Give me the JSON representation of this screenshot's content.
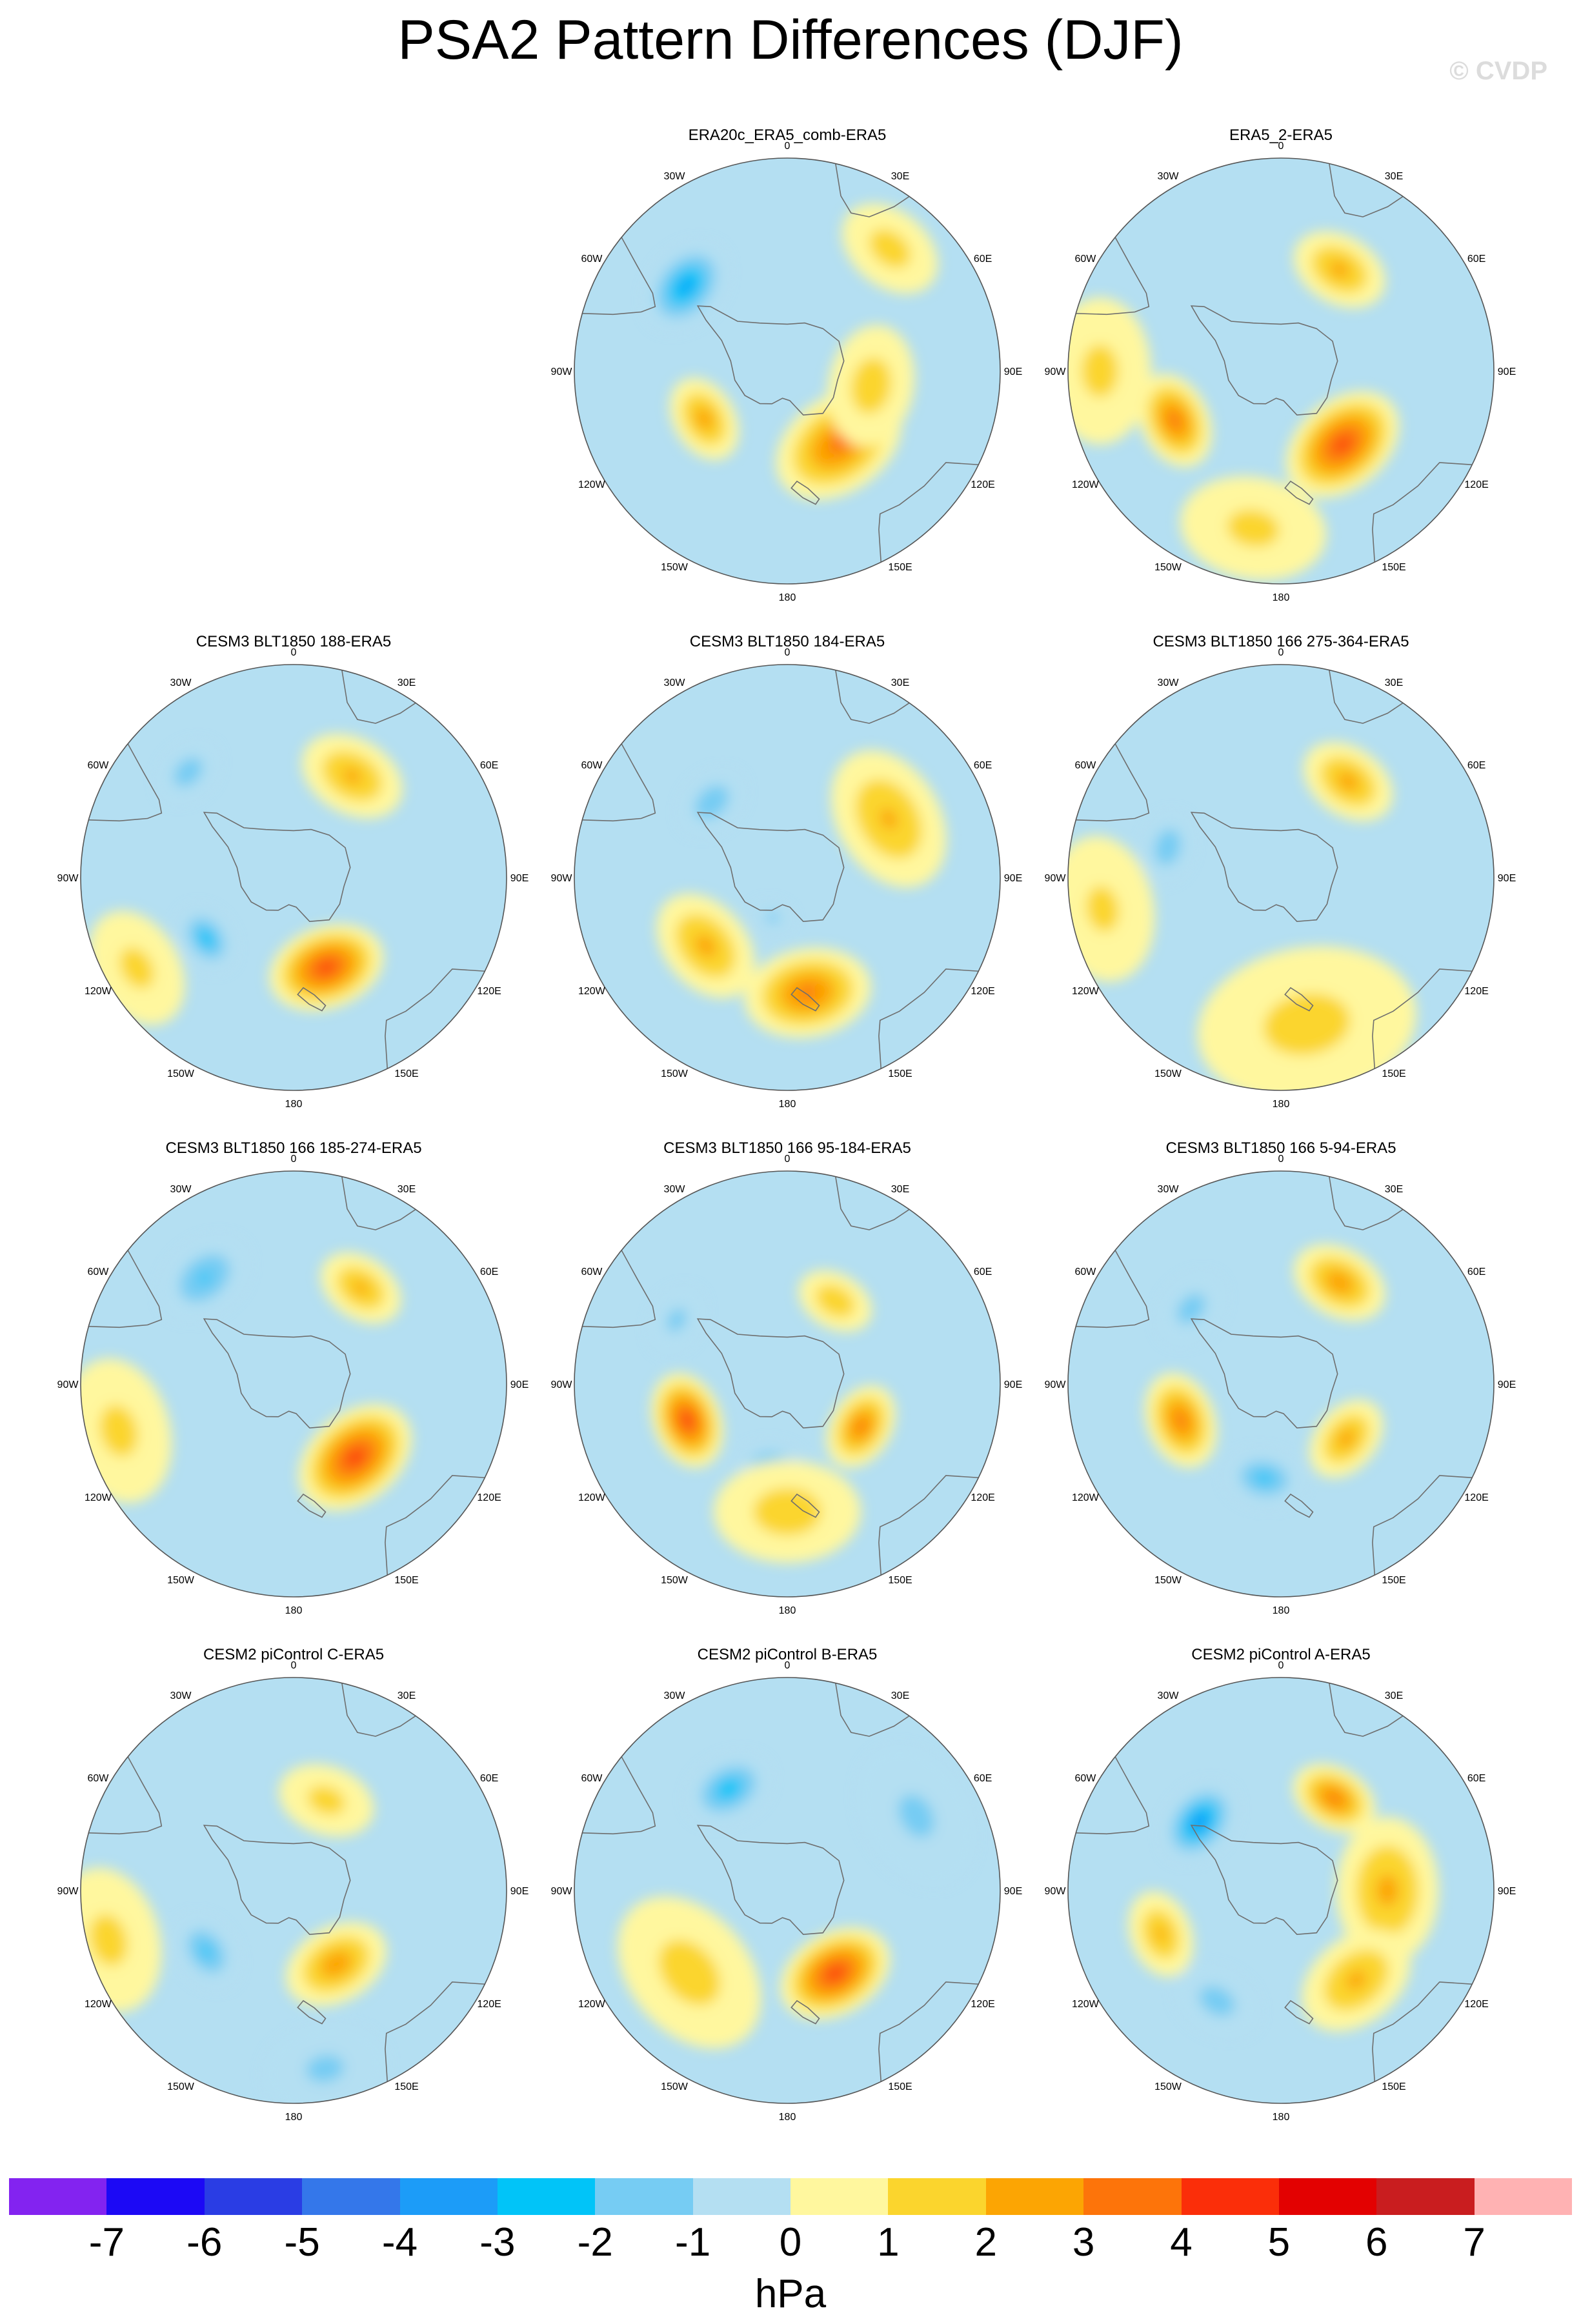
{
  "header": {
    "title": "PSA2 Pattern Differences (DJF)",
    "watermark": "© CVDP"
  },
  "lon_labels": [
    "0",
    "30E",
    "60E",
    "90E",
    "120E",
    "150E",
    "180",
    "150W",
    "120W",
    "90W",
    "60W",
    "30W"
  ],
  "colors": {
    "ocean_neutral": "#b4dff2",
    "coast_line": "#6e6e6e"
  },
  "chart_data": {
    "type": "polar-contour-maps",
    "projection": "polar stereographic (south pole)",
    "variable": "sea level pressure pattern difference",
    "season": "DJF",
    "units": "hPa",
    "levels": [
      -7,
      -6,
      -5,
      -4,
      -3,
      -2,
      -1,
      0,
      1,
      2,
      3,
      4,
      5,
      6,
      7
    ],
    "colorbar": {
      "tick_labels": [
        "-7",
        "-6",
        "-5",
        "-4",
        "-3",
        "-2",
        "-1",
        "0",
        "1",
        "2",
        "3",
        "4",
        "5",
        "6",
        "7"
      ],
      "unit_label": "hPa",
      "colors": [
        "#8323f0",
        "#1c09f5",
        "#2a3de4",
        "#3477ea",
        "#1c9cf8",
        "#01c4f8",
        "#76ccf3",
        "#b4dff2",
        "#fff79e",
        "#fbd52d",
        "#fca503",
        "#fd740a",
        "#fb2e09",
        "#e30101",
        "#c91d1f",
        "#ffb2b3"
      ]
    },
    "panels": [
      {
        "title": "ERA20c_ERA5_comb-ERA5",
        "blobs": [
          {
            "lon": 310,
            "colat": 0.62,
            "value": -3.2,
            "spread": 0.2
          },
          {
            "lon": 145,
            "colat": 0.42,
            "value": 3.3,
            "spread": 0.28
          },
          {
            "lon": 240,
            "colat": 0.45,
            "value": 2.4,
            "spread": 0.18
          },
          {
            "lon": 40,
            "colat": 0.75,
            "value": 1.4,
            "spread": 0.22
          },
          {
            "lon": 100,
            "colat": 0.4,
            "value": 1.5,
            "spread": 0.25
          }
        ]
      },
      {
        "title": "ERA5_2-ERA5",
        "blobs": [
          {
            "lon": 140,
            "colat": 0.45,
            "value": 4.2,
            "spread": 0.26
          },
          {
            "lon": 245,
            "colat": 0.55,
            "value": 3.3,
            "spread": 0.2
          },
          {
            "lon": 30,
            "colat": 0.55,
            "value": 2.2,
            "spread": 0.2
          },
          {
            "lon": 190,
            "colat": 0.75,
            "value": 1.2,
            "spread": 0.3
          },
          {
            "lon": 270,
            "colat": 0.85,
            "value": 1.2,
            "spread": 0.3
          }
        ]
      },
      {
        "title": "CESM3 BLT1850 188-ERA5",
        "blobs": [
          {
            "lon": 160,
            "colat": 0.45,
            "value": 4.2,
            "spread": 0.24
          },
          {
            "lon": 235,
            "colat": 0.5,
            "value": -2.6,
            "spread": 0.14
          },
          {
            "lon": 315,
            "colat": 0.7,
            "value": -1.6,
            "spread": 0.14
          },
          {
            "lon": 30,
            "colat": 0.55,
            "value": 2.1,
            "spread": 0.22
          },
          {
            "lon": 240,
            "colat": 0.85,
            "value": 1.2,
            "spread": 0.25
          }
        ]
      },
      {
        "title": "CESM3 BLT1850 184-ERA5",
        "blobs": [
          {
            "lon": 170,
            "colat": 0.55,
            "value": 3.2,
            "spread": 0.26
          },
          {
            "lon": 230,
            "colat": 0.5,
            "value": 2.2,
            "spread": 0.24
          },
          {
            "lon": 60,
            "colat": 0.55,
            "value": 2.0,
            "spread": 0.3
          },
          {
            "lon": 315,
            "colat": 0.5,
            "value": -1.8,
            "spread": 0.15
          },
          {
            "lon": 200,
            "colat": 0.2,
            "value": -1.2,
            "spread": 0.08
          }
        ]
      },
      {
        "title": "CESM3 BLT1850 166 275-364-ERA5",
        "blobs": [
          {
            "lon": 35,
            "colat": 0.55,
            "value": 2.3,
            "spread": 0.2
          },
          {
            "lon": 285,
            "colat": 0.55,
            "value": -1.8,
            "spread": 0.14
          },
          {
            "lon": 170,
            "colat": 0.7,
            "value": 1.3,
            "spread": 0.45
          },
          {
            "lon": 260,
            "colat": 0.85,
            "value": 1.1,
            "spread": 0.3
          }
        ]
      },
      {
        "title": "CESM3 BLT1850 166 185-274-ERA5",
        "blobs": [
          {
            "lon": 140,
            "colat": 0.45,
            "value": 4.3,
            "spread": 0.26
          },
          {
            "lon": 320,
            "colat": 0.65,
            "value": -2.0,
            "spread": 0.2
          },
          {
            "lon": 35,
            "colat": 0.55,
            "value": 2.1,
            "spread": 0.18
          },
          {
            "lon": 255,
            "colat": 0.85,
            "value": 1.2,
            "spread": 0.3
          }
        ]
      },
      {
        "title": "CESM3 BLT1850 166 95-184-ERA5",
        "blobs": [
          {
            "lon": 250,
            "colat": 0.5,
            "value": 4.2,
            "spread": 0.2
          },
          {
            "lon": 190,
            "colat": 0.4,
            "value": -2.3,
            "spread": 0.14
          },
          {
            "lon": 120,
            "colat": 0.4,
            "value": 3.1,
            "spread": 0.18
          },
          {
            "lon": 180,
            "colat": 0.6,
            "value": 1.5,
            "spread": 0.3
          },
          {
            "lon": 30,
            "colat": 0.45,
            "value": 1.8,
            "spread": 0.16
          },
          {
            "lon": 300,
            "colat": 0.6,
            "value": -1.2,
            "spread": 0.14
          }
        ]
      },
      {
        "title": "CESM3 BLT1850 166 5-94-ERA5",
        "blobs": [
          {
            "lon": 250,
            "colat": 0.5,
            "value": 3.2,
            "spread": 0.2
          },
          {
            "lon": 190,
            "colat": 0.45,
            "value": -2.2,
            "spread": 0.16
          },
          {
            "lon": 130,
            "colat": 0.4,
            "value": 2.3,
            "spread": 0.18
          },
          {
            "lon": 30,
            "colat": 0.55,
            "value": 2.6,
            "spread": 0.2
          },
          {
            "lon": 310,
            "colat": 0.55,
            "value": -1.4,
            "spread": 0.16
          }
        ]
      },
      {
        "title": "CESM2 piControl C-ERA5",
        "blobs": [
          {
            "lon": 150,
            "colat": 0.4,
            "value": 2.6,
            "spread": 0.22
          },
          {
            "lon": 235,
            "colat": 0.5,
            "value": -2.1,
            "spread": 0.16
          },
          {
            "lon": 20,
            "colat": 0.45,
            "value": 1.3,
            "spread": 0.2
          },
          {
            "lon": 255,
            "colat": 0.9,
            "value": 1.2,
            "spread": 0.3
          },
          {
            "lon": 170,
            "colat": 0.85,
            "value": -1.1,
            "spread": 0.25
          }
        ]
      },
      {
        "title": "CESM2 piControl B-ERA5",
        "blobs": [
          {
            "lon": 150,
            "colat": 0.45,
            "value": 4.3,
            "spread": 0.24
          },
          {
            "lon": 330,
            "colat": 0.55,
            "value": -2.6,
            "spread": 0.18
          },
          {
            "lon": 230,
            "colat": 0.6,
            "value": 1.4,
            "spread": 0.35
          },
          {
            "lon": 60,
            "colat": 0.7,
            "value": -1.1,
            "spread": 0.3
          }
        ]
      },
      {
        "title": "CESM2 piControl A-ERA5",
        "blobs": [
          {
            "lon": 310,
            "colat": 0.5,
            "value": -3.6,
            "spread": 0.18
          },
          {
            "lon": 30,
            "colat": 0.5,
            "value": 3.2,
            "spread": 0.18
          },
          {
            "lon": 90,
            "colat": 0.5,
            "value": 2.2,
            "spread": 0.3
          },
          {
            "lon": 140,
            "colat": 0.55,
            "value": 2.1,
            "spread": 0.25
          },
          {
            "lon": 250,
            "colat": 0.6,
            "value": 2.0,
            "spread": 0.18
          },
          {
            "lon": 210,
            "colat": 0.6,
            "value": -1.4,
            "spread": 0.18
          }
        ]
      }
    ]
  }
}
